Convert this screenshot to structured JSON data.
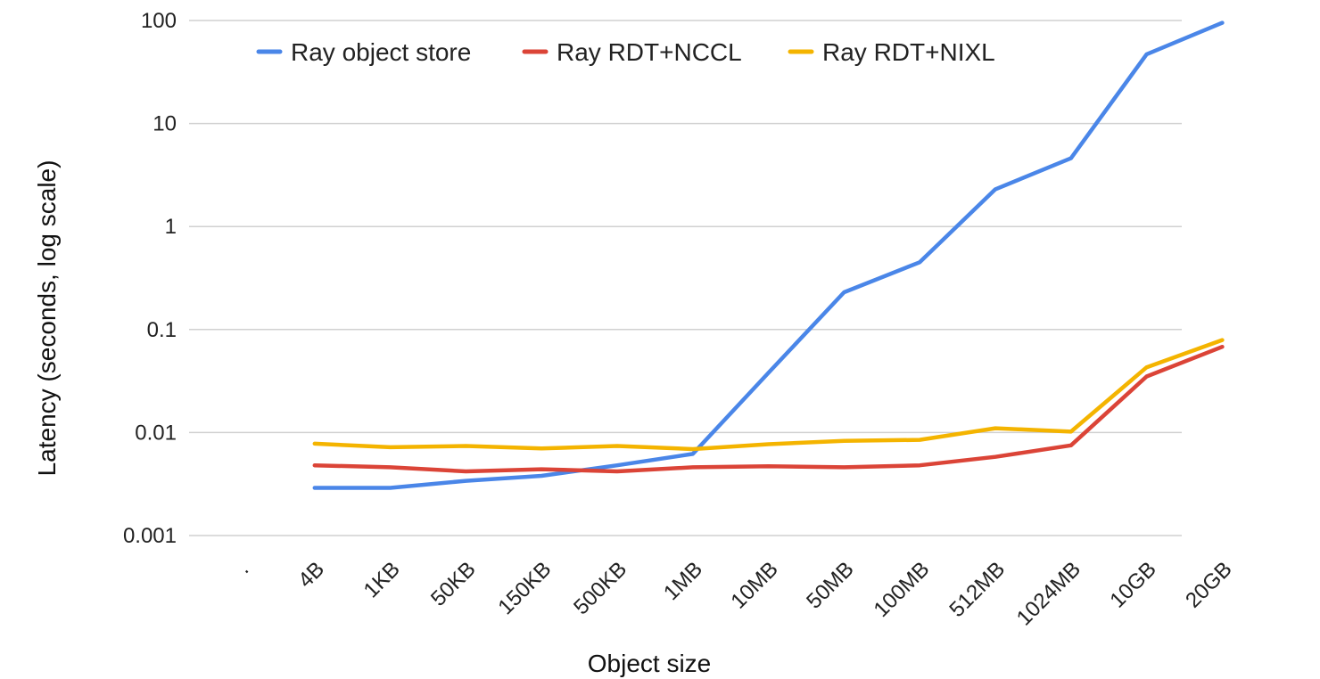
{
  "chart_data": {
    "type": "line",
    "title": "",
    "xlabel": "Object size",
    "ylabel": "Latency (seconds, log scale)",
    "yscale": "log",
    "ylim": [
      0.001,
      100
    ],
    "yticks": [
      "100",
      "10",
      "1",
      "0.1",
      "0.01",
      "0.001"
    ],
    "ytick_values": [
      100,
      10,
      1,
      0.1,
      0.01,
      0.001
    ],
    "grid": true,
    "legend_position": "top",
    "categories": [
      ".",
      "4B",
      "1KB",
      "50KB",
      "150KB",
      "500KB",
      "1MB",
      "10MB",
      "50MB",
      "100MB",
      "512MB",
      "1024MB",
      "10GB",
      "20GB"
    ],
    "series": [
      {
        "name": "Ray object store",
        "color": "#4a86e8",
        "values": [
          null,
          0.0029,
          0.0029,
          0.0034,
          0.0038,
          0.0048,
          0.0062,
          0.038,
          0.23,
          0.45,
          2.3,
          4.6,
          47,
          95
        ]
      },
      {
        "name": "Ray RDT+NCCL",
        "color": "#db4437",
        "values": [
          null,
          0.0048,
          0.0046,
          0.0042,
          0.0044,
          0.0042,
          0.0046,
          0.0047,
          0.0046,
          0.0048,
          0.0058,
          0.0075,
          0.035,
          0.068
        ]
      },
      {
        "name": "Ray RDT+NIXL",
        "color": "#f4b400",
        "values": [
          null,
          0.0078,
          0.0072,
          0.0074,
          0.007,
          0.0074,
          0.0069,
          0.0077,
          0.0083,
          0.0085,
          0.011,
          0.0102,
          0.043,
          0.079
        ]
      }
    ]
  }
}
